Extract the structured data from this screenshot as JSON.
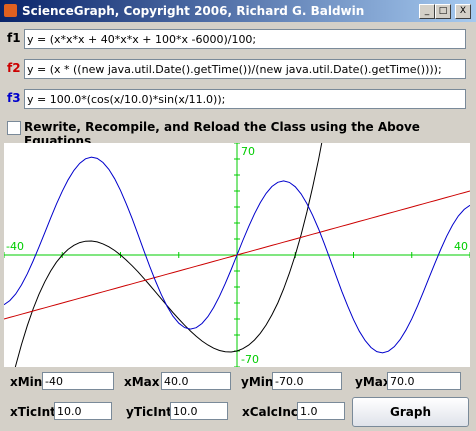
{
  "window": {
    "title": "ScienceGraph, Copyright 2006, Richard G. Baldwin"
  },
  "equations": [
    {
      "label": "f1",
      "color": "#000000",
      "text": "y = (x*x*x + 40*x*x + 100*x -6000)/100;"
    },
    {
      "label": "f2",
      "color": "#cc0000",
      "text": "y = (x * ((new java.util.Date().getTime())/(new java.util.Date().getTime())));"
    },
    {
      "label": "f3",
      "color": "#0000cc",
      "text": "y = 100.0*(cos(x/10.0)*sin(x/11.0));"
    }
  ],
  "checkbox": "Rewrite, Recompile, and Reload the Class using the Above Equations",
  "plot": {
    "x_min_label": "-40",
    "x_max_label": "40",
    "y_max_label": "70",
    "y_min_label": "-70",
    "axis_color": "#00cc00"
  },
  "controls": [
    {
      "label": "xMin",
      "value": "-40"
    },
    {
      "label": "xMax",
      "value": "40.0"
    },
    {
      "label": "yMin",
      "value": "-70.0"
    },
    {
      "label": "yMax",
      "value": "70.0"
    },
    {
      "label": "xTicInt",
      "value": "10.0"
    },
    {
      "label": "yTicInt",
      "value": "10.0"
    },
    {
      "label": "xCalcInc",
      "value": "1.0"
    }
  ],
  "button": "Graph"
}
